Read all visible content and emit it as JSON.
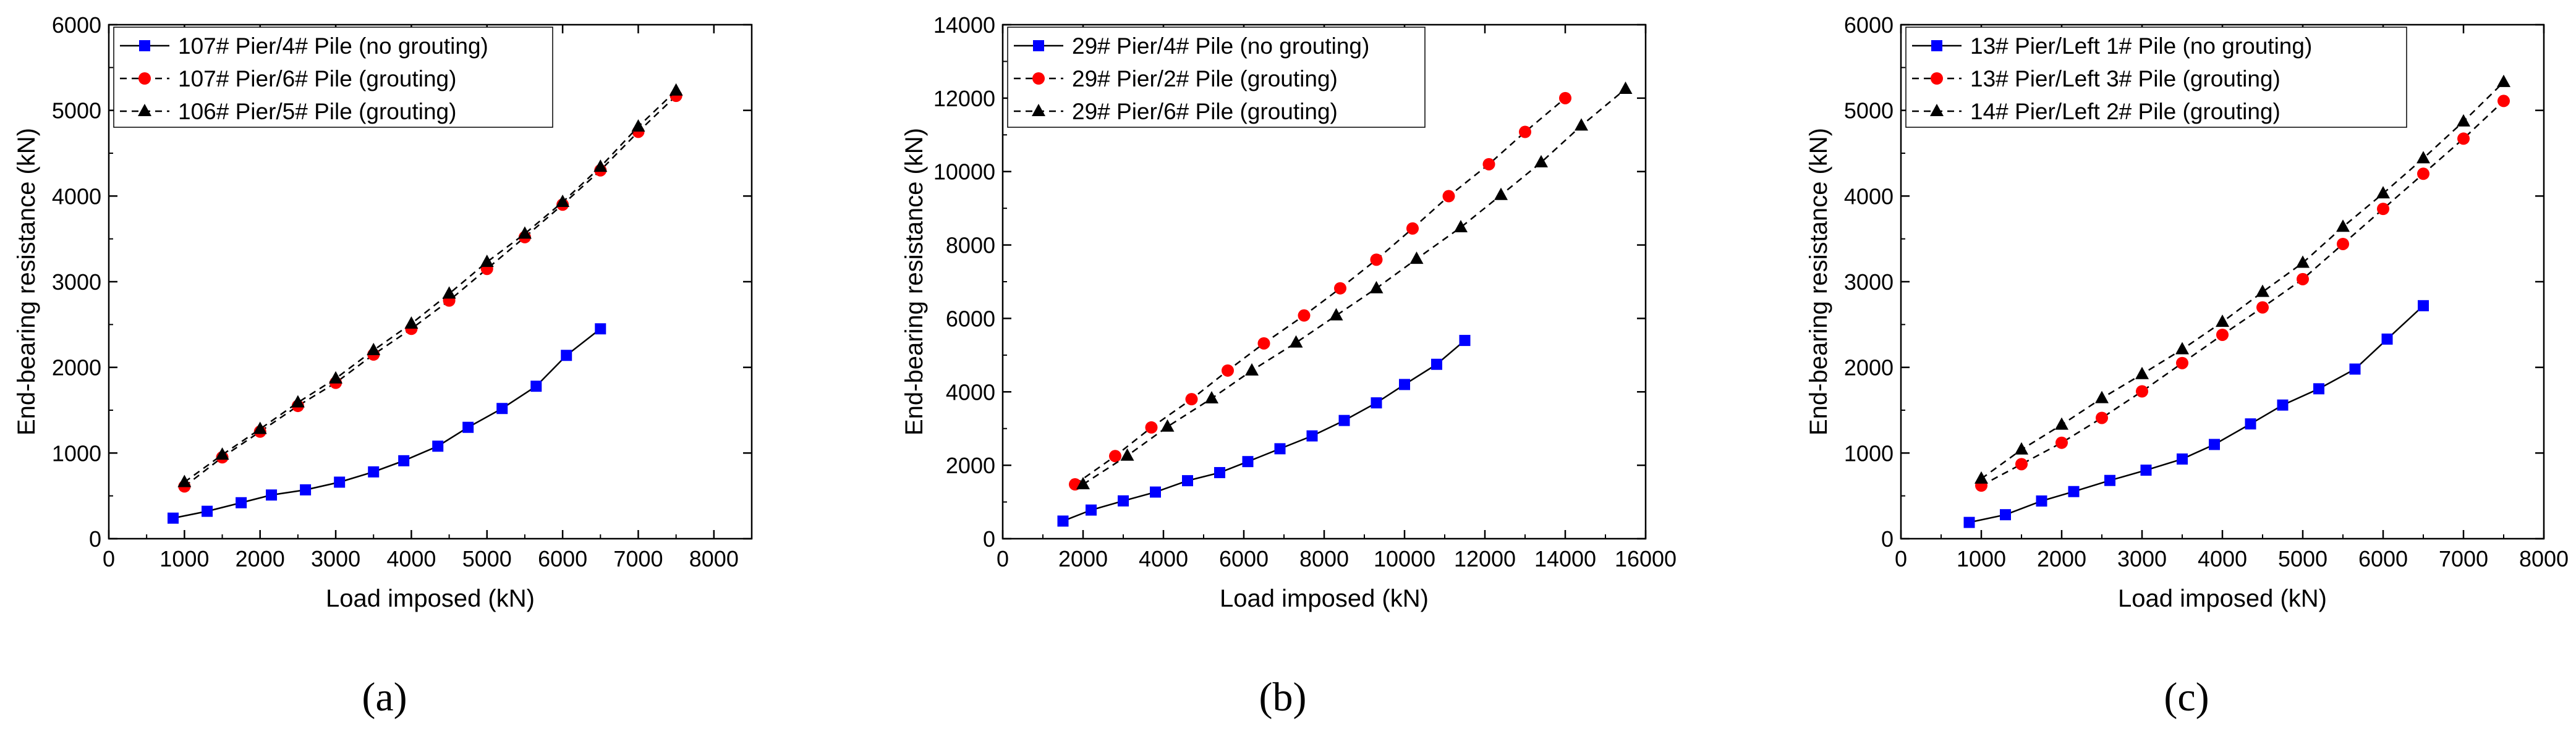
{
  "chart_data": [
    {
      "type": "line",
      "panel_label": "(a)",
      "xlabel": "Load imposed (kN)",
      "ylabel": "End-bearing resistance (kN)",
      "xlim": [
        0,
        8500
      ],
      "ylim": [
        0,
        6000
      ],
      "xticks": [
        0,
        1000,
        2000,
        3000,
        4000,
        5000,
        6000,
        7000,
        8000
      ],
      "yticks": [
        0,
        1000,
        2000,
        3000,
        4000,
        5000,
        6000
      ],
      "legend_position": "top-left",
      "series": [
        {
          "name": "107# Pier/4# Pile (no grouting)",
          "marker": "square",
          "color": "#0000ff",
          "line": "solid",
          "x": [
            850,
            1300,
            1750,
            2150,
            2600,
            3050,
            3500,
            3900,
            4350,
            4750,
            5200,
            5650,
            6050,
            6500
          ],
          "y": [
            240,
            320,
            420,
            510,
            570,
            660,
            780,
            910,
            1080,
            1300,
            1520,
            1780,
            2140,
            2450
          ]
        },
        {
          "name": "107# Pier/6# Pile (grouting)",
          "marker": "circle",
          "color": "#ff0000",
          "line": "dashed",
          "x": [
            1000,
            1500,
            2000,
            2500,
            3000,
            3500,
            4000,
            4500,
            5000,
            5500,
            6000,
            6500,
            7000,
            7500
          ],
          "y": [
            610,
            950,
            1250,
            1550,
            1820,
            2150,
            2450,
            2780,
            3150,
            3520,
            3900,
            4300,
            4750,
            5170
          ]
        },
        {
          "name": "106# Pier/5# Pile (grouting)",
          "marker": "triangle",
          "color": "#000000",
          "line": "dashed",
          "x": [
            1000,
            1500,
            2000,
            2500,
            3000,
            3500,
            4000,
            4500,
            5000,
            5500,
            6000,
            6500,
            7000,
            7500
          ],
          "y": [
            660,
            980,
            1280,
            1590,
            1870,
            2200,
            2510,
            2860,
            3230,
            3560,
            3930,
            4340,
            4810,
            5230
          ]
        }
      ]
    },
    {
      "type": "line",
      "panel_label": "(b)",
      "xlabel": "Load imposed (kN)",
      "ylabel": "End-bearing resistance (kN)",
      "xlim": [
        0,
        16000
      ],
      "ylim": [
        0,
        14000
      ],
      "xticks": [
        0,
        2000,
        4000,
        6000,
        8000,
        10000,
        12000,
        14000,
        16000
      ],
      "yticks": [
        0,
        2000,
        4000,
        6000,
        8000,
        10000,
        12000,
        14000
      ],
      "legend_position": "top-left",
      "series": [
        {
          "name": "29# Pier/4# Pile (no grouting)",
          "marker": "square",
          "color": "#0000ff",
          "line": "solid",
          "x": [
            1500,
            2200,
            3000,
            3800,
            4600,
            5400,
            6100,
            6900,
            7700,
            8500,
            9300,
            10000,
            10800,
            11500
          ],
          "y": [
            480,
            780,
            1030,
            1270,
            1580,
            1800,
            2100,
            2450,
            2800,
            3220,
            3700,
            4200,
            4750,
            5400
          ]
        },
        {
          "name": "29# Pier/2# Pile (grouting)",
          "marker": "circle",
          "color": "#ff0000",
          "line": "dashed",
          "x": [
            1800,
            2800,
            3700,
            4700,
            5600,
            6500,
            7500,
            8400,
            9300,
            10200,
            11100,
            12100,
            13000,
            14000
          ],
          "y": [
            1480,
            2250,
            3030,
            3800,
            4580,
            5320,
            6080,
            6820,
            7600,
            8450,
            9330,
            10200,
            11080,
            12000
          ]
        },
        {
          "name": "29# Pier/6# Pile (grouting)",
          "marker": "triangle",
          "color": "#000000",
          "line": "dashed",
          "x": [
            2000,
            3100,
            4100,
            5200,
            6200,
            7300,
            8300,
            9300,
            10300,
            11400,
            12400,
            13400,
            14400,
            15500
          ],
          "y": [
            1480,
            2260,
            3050,
            3820,
            4580,
            5340,
            6080,
            6820,
            7620,
            8480,
            9360,
            10250,
            11250,
            12250
          ]
        }
      ]
    },
    {
      "type": "line",
      "panel_label": "(c)",
      "xlabel": "Load imposed (kN)",
      "ylabel": "End-bearing resistance (kN)",
      "xlim": [
        0,
        8000
      ],
      "ylim": [
        0,
        6000
      ],
      "xticks": [
        0,
        1000,
        2000,
        3000,
        4000,
        5000,
        6000,
        7000,
        8000
      ],
      "yticks": [
        0,
        1000,
        2000,
        3000,
        4000,
        5000,
        6000
      ],
      "legend_position": "top-left",
      "series": [
        {
          "name": "13# Pier/Left 1# Pile (no grouting)",
          "marker": "square",
          "color": "#0000ff",
          "line": "solid",
          "x": [
            850,
            1300,
            1750,
            2150,
            2600,
            3050,
            3500,
            3900,
            4350,
            4750,
            5200,
            5650,
            6050,
            6500
          ],
          "y": [
            190,
            280,
            440,
            550,
            680,
            800,
            930,
            1100,
            1340,
            1560,
            1750,
            1980,
            2330,
            2720
          ]
        },
        {
          "name": "13# Pier/Left 3# Pile (grouting)",
          "marker": "circle",
          "color": "#ff0000",
          "line": "dashed",
          "x": [
            1000,
            1500,
            2000,
            2500,
            3000,
            3500,
            4000,
            4500,
            5000,
            5500,
            6000,
            6500,
            7000,
            7500
          ],
          "y": [
            620,
            870,
            1120,
            1410,
            1720,
            2050,
            2380,
            2700,
            3030,
            3440,
            3850,
            4260,
            4670,
            5110
          ]
        },
        {
          "name": "14# Pier/Left 2# Pile (grouting)",
          "marker": "triangle",
          "color": "#000000",
          "line": "dashed",
          "x": [
            1000,
            1500,
            2000,
            2500,
            3000,
            3500,
            4000,
            4500,
            5000,
            5500,
            6000,
            6500,
            7000,
            7500
          ],
          "y": [
            700,
            1040,
            1330,
            1640,
            1920,
            2210,
            2530,
            2880,
            3220,
            3640,
            4030,
            4440,
            4870,
            5330
          ]
        }
      ]
    }
  ]
}
